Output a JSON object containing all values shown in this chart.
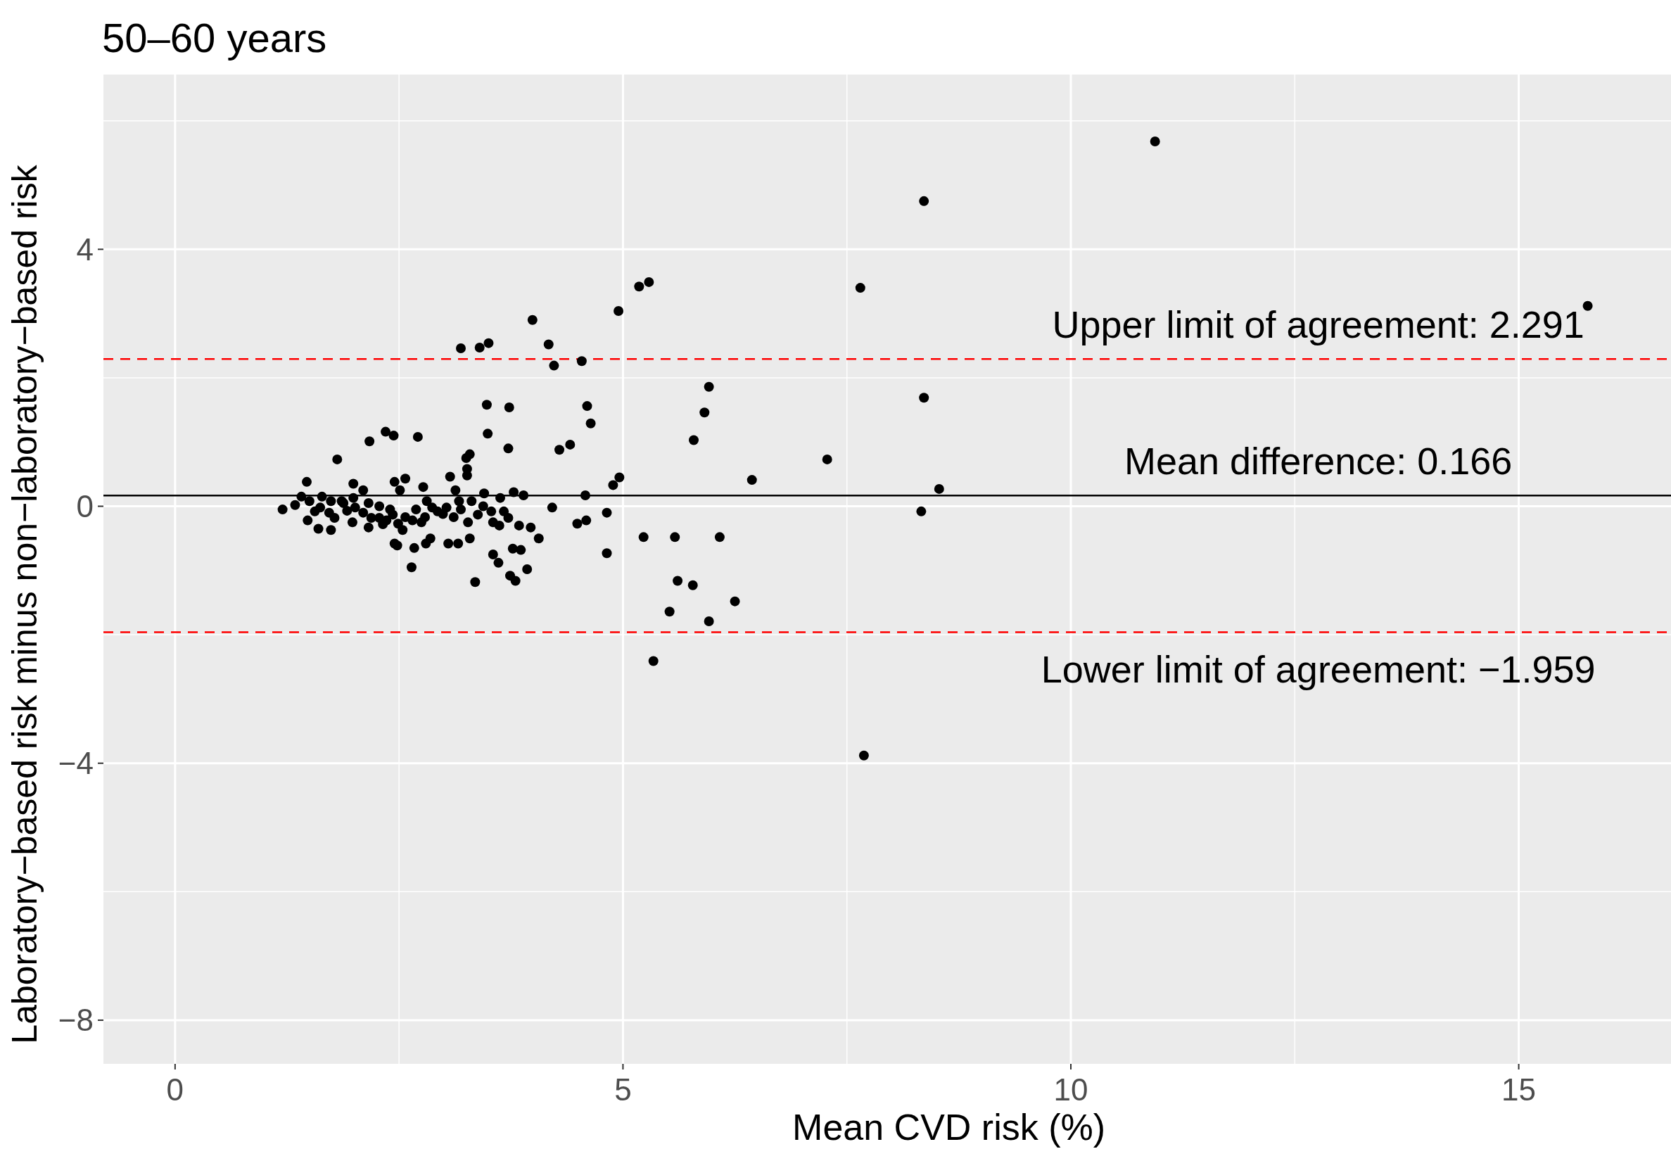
{
  "chart_data": {
    "type": "scatter",
    "title": "50–60 years",
    "xlabel": "Mean CVD risk (%)",
    "ylabel": "Laboratory−based risk minus non−laboratory−based risk",
    "xlim": [
      -0.8,
      16.7
    ],
    "ylim": [
      -8.68,
      6.72
    ],
    "xticks": [
      0,
      {
        "value": 2.5,
        "label": null
      },
      5,
      {
        "value": 7.5,
        "label": null
      },
      10,
      {
        "value": 12.5,
        "label": null
      },
      15
    ],
    "yticks": [
      {
        "value": -8,
        "label": "−8"
      },
      {
        "value": -6,
        "label": null
      },
      {
        "value": -4,
        "label": "−4"
      },
      {
        "value": -2,
        "label": null
      },
      0,
      {
        "value": 2,
        "label": null
      },
      4,
      {
        "value": 6,
        "label": null
      }
    ],
    "grid": true,
    "marker": "circle",
    "ref_lines": [
      {
        "axis": "y",
        "value": 2.291,
        "label": "Upper limit of agreement: 2.291",
        "color": "#ff0000",
        "line_style": "dashed"
      },
      {
        "axis": "y",
        "value": 0.166,
        "label": "Mean difference: 0.166",
        "color": "#000000",
        "line_style": "solid"
      },
      {
        "axis": "y",
        "value": -1.959,
        "label": "Lower limit of agreement: −1.959",
        "color": "#ff0000",
        "line_style": "dashed"
      }
    ],
    "series": [
      {
        "color": "#000000",
        "x": [
          10.94,
          8.36,
          7.65,
          15.77,
          5.18,
          5.29,
          4.95,
          3.99,
          3.19,
          3.4,
          3.5,
          4.17,
          4.23,
          4.54,
          3.48,
          3.73,
          4.6,
          4.64,
          5.96,
          5.91,
          8.36,
          3.49,
          4.41,
          4.29,
          3.72,
          5.79,
          7.28,
          2.35,
          2.44,
          2.71,
          2.17,
          1.81,
          6.44,
          4.96,
          4.89,
          8.53,
          4.58,
          8.33,
          4.82,
          4.49,
          4.59,
          4.21,
          5.23,
          5.58,
          6.08,
          4.82,
          5.61,
          5.78,
          6.25,
          5.52,
          5.96,
          5.34,
          7.69,
          3.35,
          3.8,
          3.74,
          3.93,
          2.64,
          3.61,
          3.55,
          3.86,
          3.77,
          4.06,
          3.29,
          3.16,
          2.85,
          2.8,
          2.48,
          2.67,
          3.05,
          3.97,
          3.84,
          3.62,
          3.72,
          3.78,
          3.89,
          3.67,
          3.63,
          3.29,
          3.25,
          3.26,
          3.07,
          3.26,
          3.13,
          3.45,
          3.31,
          2.57,
          2.45,
          2.51,
          2.77,
          1.99,
          1.47,
          2.1,
          1.2,
          1.34,
          1.41,
          1.5,
          1.64,
          1.48,
          1.6,
          1.74,
          1.78,
          1.98,
          2.16,
          2.32,
          2.45,
          2.54,
          2.75,
          2.93,
          3.11,
          2.99,
          1.62,
          1.86,
          1.99,
          2.16,
          2.28,
          2.4,
          2.43,
          2.57,
          2.69,
          2.81,
          2.87,
          2.28,
          2.1,
          1.92,
          1.72,
          1.56,
          1.74,
          1.88,
          2.01,
          2.19,
          2.36,
          2.49,
          2.65,
          2.79,
          3.44,
          3.53,
          3.17,
          3.03,
          3.55,
          3.38,
          3.27,
          3.19
        ],
        "values": [
          5.68,
          4.75,
          3.4,
          3.12,
          3.42,
          3.49,
          3.04,
          2.9,
          2.46,
          2.47,
          2.54,
          2.52,
          2.19,
          2.26,
          1.58,
          1.54,
          1.56,
          1.29,
          1.86,
          1.46,
          1.69,
          1.13,
          0.96,
          0.88,
          0.9,
          1.03,
          0.73,
          1.16,
          1.1,
          1.08,
          1.01,
          0.73,
          0.41,
          0.45,
          0.33,
          0.27,
          0.17,
          -0.08,
          -0.1,
          -0.27,
          -0.22,
          -0.02,
          -0.48,
          -0.48,
          -0.48,
          -0.73,
          -1.16,
          -1.23,
          -1.48,
          -1.64,
          -1.79,
          -2.41,
          -3.88,
          -1.18,
          -1.16,
          -1.08,
          -0.98,
          -0.95,
          -0.88,
          -0.75,
          -0.68,
          -0.66,
          -0.5,
          -0.5,
          -0.58,
          -0.5,
          -0.58,
          -0.61,
          -0.65,
          -0.58,
          -0.33,
          -0.3,
          -0.3,
          -0.18,
          0.22,
          0.17,
          -0.08,
          0.13,
          0.81,
          0.75,
          0.58,
          0.46,
          0.48,
          0.25,
          0.2,
          0.08,
          0.43,
          0.38,
          0.25,
          0.3,
          0.35,
          0.38,
          0.25,
          -0.05,
          0.02,
          0.15,
          0.08,
          0.15,
          -0.22,
          -0.35,
          -0.37,
          -0.18,
          -0.25,
          -0.33,
          -0.28,
          -0.58,
          -0.37,
          -0.25,
          -0.08,
          -0.17,
          -0.12,
          -0.02,
          0.08,
          0.13,
          0.05,
          0.0,
          -0.05,
          -0.13,
          -0.17,
          -0.05,
          0.08,
          -0.02,
          -0.18,
          -0.1,
          -0.07,
          -0.1,
          -0.08,
          0.08,
          0.05,
          -0.02,
          -0.18,
          -0.22,
          -0.27,
          -0.22,
          -0.17,
          0.0,
          -0.08,
          0.08,
          -0.02,
          -0.25,
          -0.13,
          -0.25,
          -0.05
        ]
      }
    ]
  }
}
